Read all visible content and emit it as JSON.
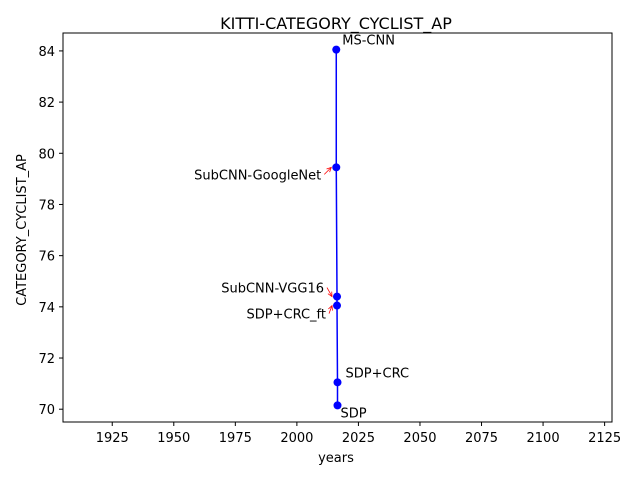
{
  "chart_data": {
    "type": "line",
    "title": "KITTI-CATEGORY_CYCLIST_AP",
    "xlabel": "years",
    "ylabel": "CATEGORY_CYCLIST_AP",
    "xlim": [
      1905,
      2128
    ],
    "ylim": [
      69.5,
      84.7
    ],
    "xticks": [
      1925,
      1950,
      1975,
      2000,
      2025,
      2050,
      2075,
      2100,
      2125
    ],
    "yticks": [
      70,
      72,
      74,
      76,
      78,
      80,
      82,
      84
    ],
    "grid": false,
    "colors": {
      "series": "#0000ff",
      "arrow": "#ff0000"
    },
    "series": [
      {
        "points": [
          {
            "label": "MS-CNN",
            "x": 2016,
            "y": 84.05
          },
          {
            "label": "SubCNN-GoogleNet",
            "x": 2016,
            "y": 79.45
          },
          {
            "label": "SubCNN-VGG16",
            "x": 2016.3,
            "y": 74.4
          },
          {
            "label": "SDP+CRC_ft",
            "x": 2016.3,
            "y": 74.05
          },
          {
            "label": "SDP+CRC",
            "x": 2016.5,
            "y": 71.05
          },
          {
            "label": "SDP",
            "x": 2016.5,
            "y": 70.15
          }
        ]
      }
    ]
  }
}
